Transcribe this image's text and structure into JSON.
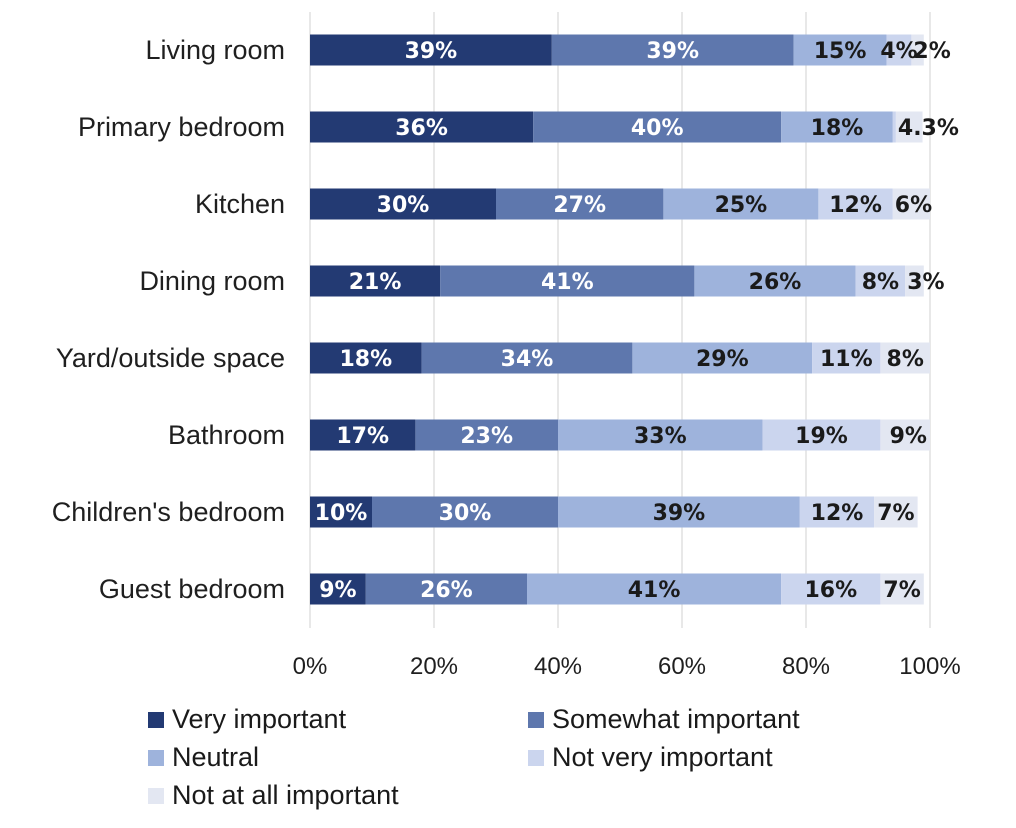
{
  "chart_data": {
    "type": "bar",
    "orientation": "horizontal",
    "stacked": true,
    "categories": [
      "Living room",
      "Primary bedroom",
      "Kitchen",
      "Dining room",
      "Yard/outside space",
      "Bathroom",
      "Children's bedroom",
      "Guest bedroom"
    ],
    "series": [
      {
        "name": "Very important",
        "color": "#233a73",
        "label_color": "#ffffff",
        "values": [
          39,
          36,
          30,
          21,
          18,
          17,
          10,
          9
        ],
        "labels": [
          "39%",
          "36%",
          "30%",
          "21%",
          "18%",
          "17%",
          "10%",
          "9%"
        ]
      },
      {
        "name": "Somewhat important",
        "color": "#5e77ad",
        "label_color": "#ffffff",
        "values": [
          39,
          40,
          27,
          41,
          34,
          23,
          30,
          26
        ],
        "labels": [
          "39%",
          "40%",
          "27%",
          "41%",
          "34%",
          "23%",
          "30%",
          "26%"
        ]
      },
      {
        "name": "Neutral",
        "color": "#9eb3dc",
        "label_color": "#1a1a1a",
        "values": [
          15,
          18,
          25,
          26,
          29,
          33,
          39,
          41
        ],
        "labels": [
          "15%",
          "18%",
          "25%",
          "26%",
          "29%",
          "33%",
          "39%",
          "41%"
        ]
      },
      {
        "name": "Not very important",
        "color": "#cbd5ee",
        "label_color": "#1a1a1a",
        "values": [
          4,
          0.5,
          12,
          8,
          11,
          19,
          12,
          16
        ],
        "labels": [
          "4%",
          "",
          "12%",
          "8%",
          "11%",
          "19%",
          "12%",
          "16%"
        ]
      },
      {
        "name": "Not at all important",
        "color": "#e3e7f2",
        "label_color": "#1a1a1a",
        "values": [
          2,
          4.3,
          6,
          3,
          8,
          9,
          7,
          7
        ],
        "labels": [
          "2%",
          "4.3%",
          "6%",
          "3%",
          "8%",
          "9%",
          "7%",
          "7%"
        ]
      }
    ],
    "xlim": [
      0,
      100
    ],
    "xticks": [
      "0%",
      "20%",
      "40%",
      "60%",
      "80%",
      "100%"
    ],
    "grid": true,
    "title": "",
    "xlabel": "",
    "ylabel": "",
    "legend_position": "bottom"
  }
}
